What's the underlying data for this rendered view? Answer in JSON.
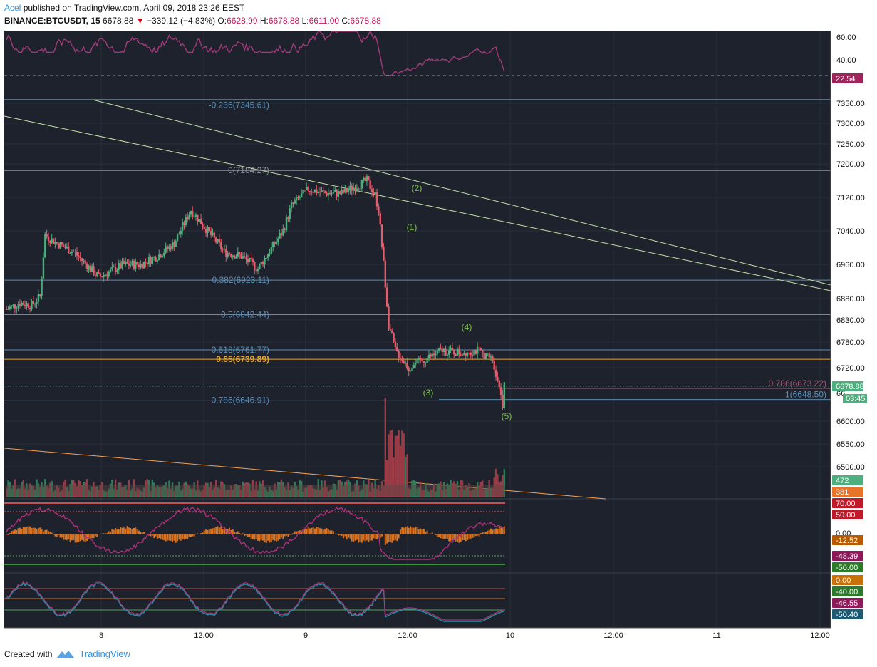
{
  "header": {
    "author": "Acel",
    "published": "published on TradingView.com, April 09, 2018 23:26 EEST"
  },
  "symbol": {
    "name": "BINANCE:BTCUSDT, 15",
    "last": "6678.88",
    "change": "−339.12 (−4.83%)",
    "o_label": "O:",
    "o": "6628.99",
    "h_label": "H:",
    "h": "6678.88",
    "l_label": "L:",
    "l": "6611.00",
    "c_label": "C:",
    "c": "6678.88"
  },
  "footer": {
    "created_with": "Created with",
    "brand": "TradingView"
  },
  "colors": {
    "panel_bg": "#1e222d",
    "grid": "#2a2e39",
    "up": "#4caf7d",
    "down": "#e85b6a",
    "fib": "#5b8fb9",
    "fib_gold": "#e8a92a",
    "trend": "#c5e0a5",
    "rsi": "#a23a7a",
    "orange": "#f5a050"
  },
  "chart_data": {
    "type": "candlestick",
    "symbol": "BINANCE:BTCUSDT",
    "timeframe": "15",
    "price_axis": {
      "ticks": [
        "7350.00",
        "7300.00",
        "7250.00",
        "7200.00",
        "7120.00",
        "7040.00",
        "6960.00",
        "6880.00",
        "6830.00",
        "6780.00",
        "6720.00",
        "6600.00",
        "6550.00",
        "6500.00"
      ],
      "last_price_label": "6678.88",
      "countdown_label": "03:45",
      "partial_label": "66"
    },
    "time_axis": [
      "8",
      "12:00",
      "9",
      "12:00",
      "10",
      "12:00",
      "11",
      "12:00"
    ],
    "rsi_top": {
      "ticks": [
        "60.00",
        "40.00"
      ],
      "value_label": "22.54"
    },
    "fib_levels": [
      {
        "label": "-0.236(7345.61)",
        "price": 7345.61
      },
      {
        "label": "0(7184.27)",
        "price": 7184.27
      },
      {
        "label": "0.382(6923.11)",
        "price": 6923.11
      },
      {
        "label": "0.5(6842.44)",
        "price": 6842.44
      },
      {
        "label": "0.618(6761.77)",
        "price": 6761.77
      },
      {
        "label": "0.65(6739.89)",
        "price": 6739.89
      },
      {
        "label": "0.786(6646.91)",
        "price": 6646.91
      }
    ],
    "fib2_levels": [
      {
        "label": "0.786(6673.22)",
        "price": 6673.22
      },
      {
        "label": "1(6648.50)",
        "price": 6648.5
      }
    ],
    "wave_labels": [
      "(2)",
      "(1)",
      "(4)",
      "(3)",
      "(5)"
    ],
    "volume": {
      "labels": [
        "472",
        "381"
      ]
    },
    "osc1": {
      "labels": [
        "70.00",
        "50.00",
        "0.00",
        "-12.52",
        "-48.39",
        "-50.00"
      ]
    },
    "osc2": {
      "labels": [
        "0.00",
        "-40.00",
        "-46.55",
        "-50.40"
      ]
    }
  }
}
